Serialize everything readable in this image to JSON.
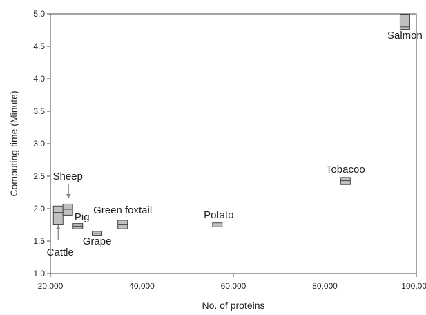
{
  "chart_data": {
    "type": "box",
    "title": "",
    "xlabel": "No. of proteins",
    "ylabel": "Computing time (Minute)",
    "xlim": [
      20000,
      100000
    ],
    "ylim": [
      1.0,
      5.0
    ],
    "xticks": [
      20000,
      40000,
      60000,
      80000,
      100000
    ],
    "xtick_labels": [
      "20,000",
      "40,000",
      "60,000",
      "80,000",
      "100,000"
    ],
    "yticks": [
      1.0,
      1.5,
      2.0,
      2.5,
      3.0,
      3.5,
      4.0,
      4.5,
      5.0
    ],
    "ytick_labels": [
      "1.0",
      "1.5",
      "2.0",
      "2.5",
      "3.0",
      "3.5",
      "4.0",
      "4.5",
      "5.0"
    ],
    "grid": false,
    "box_fill": "#c0c0c0",
    "box_stroke": "#444444",
    "points": [
      {
        "label": "Cattle",
        "x": 21700,
        "q1": 1.76,
        "median": 1.94,
        "q3": 2.04
      },
      {
        "label": "Sheep",
        "x": 23800,
        "q1": 1.9,
        "median": 1.99,
        "q3": 2.07
      },
      {
        "label": "Pig",
        "x": 26000,
        "q1": 1.69,
        "median": 1.73,
        "q3": 1.77
      },
      {
        "label": "Grape",
        "x": 30200,
        "q1": 1.59,
        "median": 1.62,
        "q3": 1.65
      },
      {
        "label": "Green foxtail",
        "x": 35800,
        "q1": 1.69,
        "median": 1.76,
        "q3": 1.82
      },
      {
        "label": "Potato",
        "x": 56500,
        "q1": 1.72,
        "median": 1.75,
        "q3": 1.78
      },
      {
        "label": "Tobacoo",
        "x": 84500,
        "q1": 2.37,
        "median": 2.43,
        "q3": 2.48
      },
      {
        "label": "Salmon",
        "x": 97500,
        "q1": 4.76,
        "median": 4.8,
        "q3": 4.99
      }
    ]
  }
}
